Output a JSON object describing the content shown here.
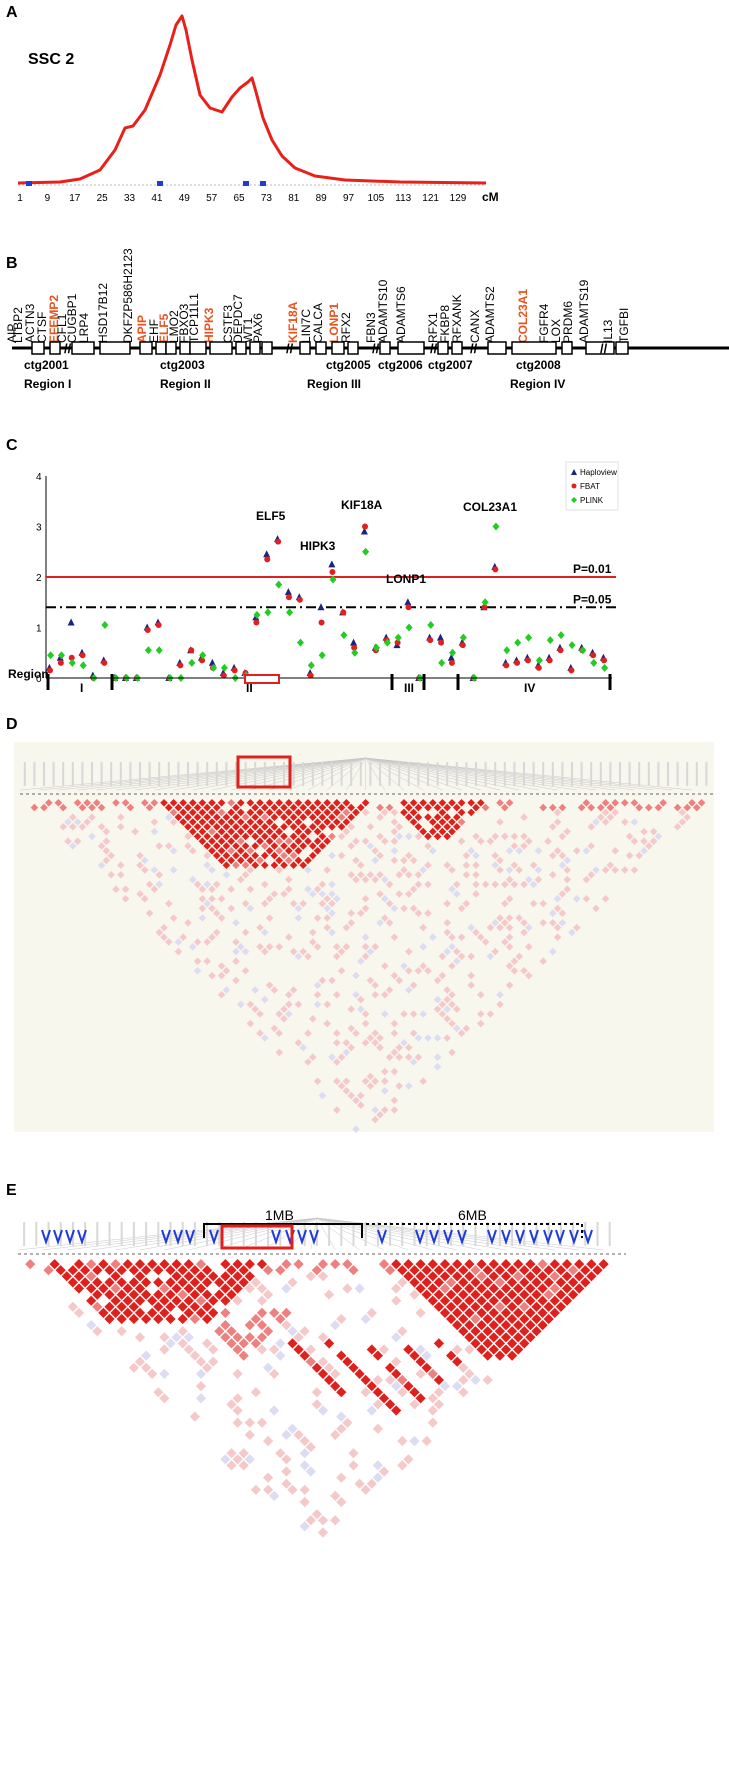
{
  "panels": {
    "A": {
      "letter": "A",
      "label": "SSC 2",
      "unit": "cM",
      "ticks": [
        "1",
        "9",
        "17",
        "25",
        "33",
        "41",
        "49",
        "57",
        "65",
        "73",
        "81",
        "89",
        "97",
        "105",
        "113",
        "121",
        "129"
      ]
    },
    "B": {
      "letter": "B",
      "genes": [
        "AIP",
        "LTBP2",
        "ACTN3",
        "CTSF",
        "EFEMP2",
        "CFL1",
        "CUGBP1",
        "LRP4",
        "HSD17B12",
        "DKFZP586H2123",
        "APIP",
        "EHF",
        "ELF5",
        "LMO2",
        "FBXO3",
        "TCP11L1",
        "HIPK3",
        "CSTF3",
        "DEPDC7",
        "WT1",
        "PAX6",
        "KIF18A",
        "LIN7C",
        "CALCA",
        "LONP1",
        "RFX2",
        "FBN3",
        "ADAMTS10",
        "ADAMTS6",
        "RFX1",
        "FKBP8",
        "RFXANK",
        "CANX",
        "ADAMTS2",
        "COL23A1",
        "FGFR4",
        "LOX",
        "PRDM6",
        "ADAMTS19",
        "IL13",
        "TGFBI"
      ],
      "highlighted": [
        "EFEMP2",
        "APIP",
        "ELF5",
        "HIPK3",
        "KIF18A",
        "LONP1",
        "COL23A1"
      ],
      "contigs": [
        "ctg2001",
        "ctg2003",
        "ctg2005",
        "ctg2006",
        "ctg2007",
        "ctg2008"
      ],
      "regions": [
        "Region I",
        "Region II",
        "Region III",
        "Region IV"
      ]
    },
    "C": {
      "letter": "C",
      "region_label": "Region",
      "region_numerals": [
        "I",
        "II",
        "III",
        "IV"
      ],
      "threshold_labels": [
        "P=0.01",
        "P=0.05"
      ],
      "gene_labels": [
        "ELF5",
        "KIF18A",
        "HIPK3",
        "LONP1",
        "COL23A1"
      ]
    },
    "D": {
      "letter": "D"
    },
    "E": {
      "letter": "E",
      "scale_1": "1MB",
      "scale_2": "6MB"
    }
  },
  "chart_data": {
    "type": "scatter",
    "title": "",
    "xlabel": "",
    "ylabel": "",
    "ylim": [
      0,
      4
    ],
    "y_ticks": [
      "0",
      "1",
      "2",
      "3",
      "4"
    ],
    "legend_position": "top-right",
    "series": [
      {
        "name": "Haploview",
        "color": "#1a237e",
        "marker": "triangle",
        "values": [
          0.2,
          0.4,
          1.1,
          0.5,
          0.05,
          0.35,
          0.0,
          0.0,
          0.0,
          1.0,
          1.1,
          0.0,
          0.3,
          0.55,
          0.4,
          0.3,
          0.1,
          0.2,
          0.1,
          1.2,
          2.45,
          2.75,
          1.7,
          1.6,
          0.1,
          1.4,
          2.25,
          1.3,
          0.7,
          2.9,
          0.6,
          0.8,
          0.65,
          1.5,
          0.0,
          0.8,
          0.8,
          0.4,
          0.7,
          0.0,
          1.4,
          2.2,
          0.3,
          0.35,
          0.4,
          0.25,
          0.4,
          0.6,
          0.2,
          0.6,
          0.5,
          0.4
        ]
      },
      {
        "name": "FBAT",
        "color": "#e02020",
        "marker": "circle",
        "values": [
          0.15,
          0.3,
          0.4,
          0.45,
          0.0,
          0.3,
          0.0,
          0.0,
          0.0,
          0.95,
          1.05,
          0.0,
          0.25,
          0.55,
          0.35,
          0.2,
          0.05,
          0.15,
          0.1,
          1.1,
          2.35,
          2.7,
          1.6,
          1.55,
          0.05,
          1.1,
          2.1,
          1.3,
          0.6,
          3.0,
          0.55,
          0.75,
          0.7,
          1.4,
          0.0,
          0.75,
          0.7,
          0.3,
          0.65,
          0.0,
          1.4,
          2.15,
          0.25,
          0.3,
          0.35,
          0.2,
          0.35,
          0.55,
          0.15,
          0.55,
          0.45,
          0.35
        ]
      },
      {
        "name": "PLINK",
        "color": "#22cc22",
        "marker": "diamond",
        "values": [
          0.45,
          0.45,
          0.3,
          0.25,
          0.0,
          1.05,
          0.0,
          0.0,
          0.0,
          0.55,
          0.55,
          0.0,
          0.0,
          0.3,
          0.45,
          0.2,
          0.2,
          0.0,
          0.05,
          1.25,
          1.3,
          1.85,
          1.3,
          0.7,
          0.25,
          0.45,
          1.95,
          0.85,
          0.5,
          2.5,
          0.6,
          0.7,
          0.8,
          1.0,
          0.0,
          1.05,
          0.3,
          0.5,
          0.8,
          0.0,
          1.5,
          3.0,
          0.55,
          0.7,
          0.8,
          0.35,
          0.75,
          0.85,
          0.65,
          0.55,
          0.3,
          0.2
        ]
      }
    ],
    "thresholds": [
      2.0,
      1.4
    ]
  },
  "colors": {
    "curve": "#e8201a",
    "highlight": "#e8531f",
    "ld_strong": "#e0201c",
    "ld_light": "#f5c9c9",
    "ld_blue": "#dcdcf2",
    "arrow": "#1f3bd8"
  }
}
